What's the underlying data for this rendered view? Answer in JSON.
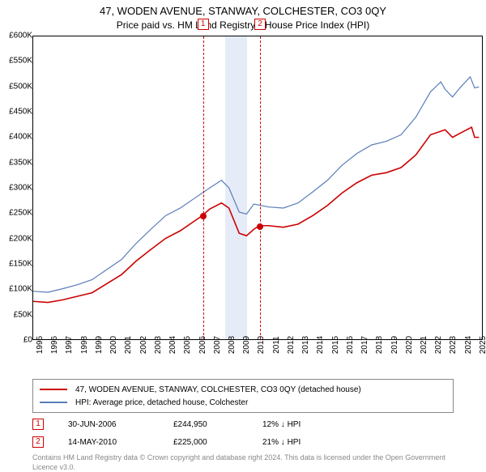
{
  "title": "47, WODEN AVENUE, STANWAY, COLCHESTER, CO3 0QY",
  "subtitle": "Price paid vs. HM Land Registry's House Price Index (HPI)",
  "chart": {
    "type": "line",
    "x_years": [
      1995,
      1996,
      1997,
      1998,
      1999,
      2000,
      2001,
      2002,
      2003,
      2004,
      2005,
      2006,
      2007,
      2008,
      2009,
      2010,
      2011,
      2012,
      2013,
      2014,
      2015,
      2016,
      2017,
      2018,
      2019,
      2020,
      2021,
      2022,
      2023,
      2024,
      2025
    ],
    "xlim": [
      1995,
      2025.5
    ],
    "ylim": [
      0,
      600000
    ],
    "ytick_step": 50000,
    "ytick_labels": [
      "£0",
      "£50K",
      "£100K",
      "£150K",
      "£200K",
      "£250K",
      "£300K",
      "£350K",
      "£400K",
      "£450K",
      "£500K",
      "£550K",
      "£600K"
    ],
    "background_color": "#ffffff",
    "series": [
      {
        "key": "prop",
        "label": "47, WODEN AVENUE, STANWAY, COLCHESTER, CO3 0QY (detached house)",
        "color": "#cc0000",
        "width": 1.6,
        "data": [
          [
            1995,
            75000
          ],
          [
            1996,
            73000
          ],
          [
            1997,
            78000
          ],
          [
            1998,
            85000
          ],
          [
            1999,
            92000
          ],
          [
            2000,
            110000
          ],
          [
            2001,
            128000
          ],
          [
            2002,
            155000
          ],
          [
            2003,
            178000
          ],
          [
            2004,
            200000
          ],
          [
            2005,
            215000
          ],
          [
            2006,
            235000
          ],
          [
            2006.5,
            244950
          ],
          [
            2007,
            258000
          ],
          [
            2007.8,
            270000
          ],
          [
            2008.3,
            260000
          ],
          [
            2009,
            210000
          ],
          [
            2009.5,
            205000
          ],
          [
            2010,
            218000
          ],
          [
            2010.37,
            225000
          ],
          [
            2011,
            225000
          ],
          [
            2012,
            222000
          ],
          [
            2013,
            228000
          ],
          [
            2014,
            245000
          ],
          [
            2015,
            265000
          ],
          [
            2016,
            290000
          ],
          [
            2017,
            310000
          ],
          [
            2018,
            325000
          ],
          [
            2019,
            330000
          ],
          [
            2020,
            340000
          ],
          [
            2021,
            365000
          ],
          [
            2022,
            405000
          ],
          [
            2023,
            415000
          ],
          [
            2023.5,
            400000
          ],
          [
            2024,
            408000
          ],
          [
            2024.8,
            420000
          ],
          [
            2025,
            400000
          ],
          [
            2025.3,
            400000
          ]
        ]
      },
      {
        "key": "hpi",
        "label": "HPI: Average price, detached house, Colchester",
        "color": "#5a7db8",
        "width": 1.2,
        "data": [
          [
            1995,
            95000
          ],
          [
            1996,
            93000
          ],
          [
            1997,
            100000
          ],
          [
            1998,
            108000
          ],
          [
            1999,
            118000
          ],
          [
            2000,
            138000
          ],
          [
            2001,
            158000
          ],
          [
            2002,
            190000
          ],
          [
            2003,
            218000
          ],
          [
            2004,
            245000
          ],
          [
            2005,
            260000
          ],
          [
            2006,
            280000
          ],
          [
            2007,
            300000
          ],
          [
            2007.8,
            315000
          ],
          [
            2008.3,
            300000
          ],
          [
            2009,
            252000
          ],
          [
            2009.5,
            248000
          ],
          [
            2010,
            268000
          ],
          [
            2011,
            262000
          ],
          [
            2012,
            260000
          ],
          [
            2013,
            270000
          ],
          [
            2014,
            292000
          ],
          [
            2015,
            315000
          ],
          [
            2016,
            345000
          ],
          [
            2017,
            368000
          ],
          [
            2018,
            385000
          ],
          [
            2019,
            392000
          ],
          [
            2020,
            405000
          ],
          [
            2021,
            440000
          ],
          [
            2022,
            490000
          ],
          [
            2022.7,
            510000
          ],
          [
            2023,
            495000
          ],
          [
            2023.5,
            480000
          ],
          [
            2024,
            498000
          ],
          [
            2024.7,
            520000
          ],
          [
            2025,
            498000
          ],
          [
            2025.3,
            500000
          ]
        ]
      }
    ],
    "shade": {
      "color": "#e6ecf7",
      "from": 2008.0,
      "to": 2009.5
    },
    "markers": [
      {
        "num": "1",
        "x": 2006.5,
        "y": 244950,
        "color": "#cc0000"
      },
      {
        "num": "2",
        "x": 2010.37,
        "y": 225000,
        "color": "#cc0000"
      }
    ]
  },
  "sales": [
    {
      "num": "1",
      "date": "30-JUN-2006",
      "price": "£244,950",
      "diff": "12% ↓ HPI"
    },
    {
      "num": "2",
      "date": "14-MAY-2010",
      "price": "£225,000",
      "diff": "21% ↓ HPI"
    }
  ],
  "attribution": "Contains HM Land Registry data © Crown copyright and database right 2024. This data is licensed under the Open Government Licence v3.0."
}
